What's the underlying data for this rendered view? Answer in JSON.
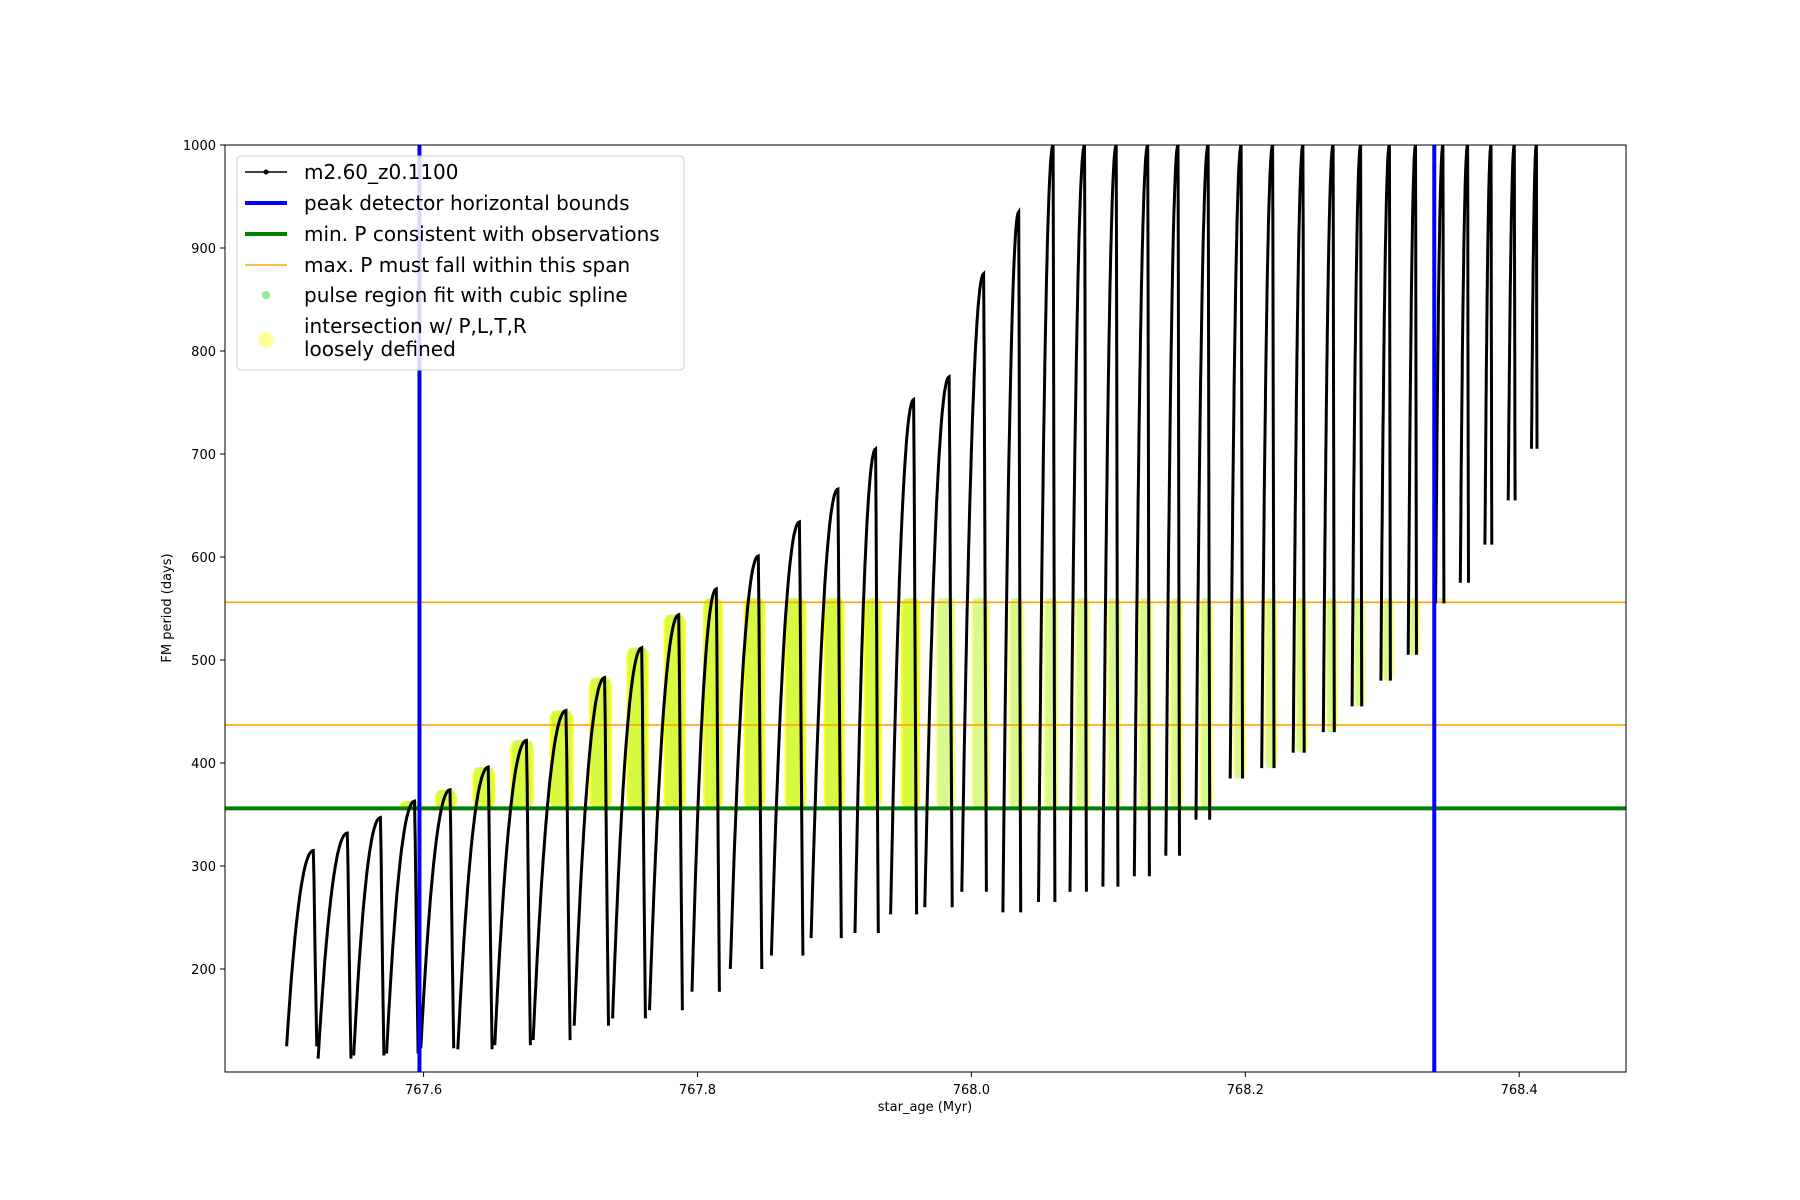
{
  "chart_data": {
    "type": "line",
    "xlabel": "star_age (Myr)",
    "ylabel": "FM period (days)",
    "xlim": [
      767.455,
      768.478
    ],
    "ylim": [
      100,
      1000
    ],
    "xticks": [
      767.6,
      767.8,
      768.0,
      768.2,
      768.4
    ],
    "xtick_labels": [
      "767.6",
      "767.8",
      "768.0",
      "768.2",
      "768.4"
    ],
    "yticks": [
      200,
      300,
      400,
      500,
      600,
      700,
      800,
      900,
      1000
    ],
    "ytick_labels": [
      "200",
      "300",
      "400",
      "500",
      "600",
      "700",
      "800",
      "900",
      "1000"
    ],
    "legend_position": "upper-left",
    "legend": [
      {
        "label": "m2.60_z0.1100",
        "kind": "line-marker",
        "color": "#000000"
      },
      {
        "label": "peak detector horizontal bounds",
        "kind": "line",
        "color": "#0000ff"
      },
      {
        "label": "min. P consistent with observations",
        "kind": "line",
        "color": "#008000"
      },
      {
        "label": "max. P must fall within this span",
        "kind": "line",
        "color": "#ffa500"
      },
      {
        "label": "pulse region fit with cubic spline",
        "kind": "dot",
        "color": "#90ee90"
      },
      {
        "label": "intersection w/ P,L,T,R",
        "label_line2": "loosely defined",
        "kind": "dot",
        "color": "#ffff99"
      }
    ],
    "vertical_lines": [
      {
        "x": 767.597,
        "color": "#0000ff"
      },
      {
        "x": 768.338,
        "color": "#0000ff"
      }
    ],
    "horizontal_lines": [
      {
        "y": 356,
        "color": "#008000"
      },
      {
        "y": 437,
        "color": "#ffa500"
      },
      {
        "y": 556,
        "color": "#ffa500"
      }
    ],
    "threshold_period": 356,
    "series": [
      {
        "name": "m2.60_z0.1100",
        "color": "#000000",
        "pulses": [
          {
            "start": 767.5,
            "max": 315,
            "min": 125,
            "dur": 0.022
          },
          {
            "start": 767.523,
            "max": 332,
            "min": 113,
            "dur": 0.024
          },
          {
            "start": 767.549,
            "max": 347,
            "min": 116,
            "dur": 0.022
          },
          {
            "start": 767.573,
            "max": 363,
            "min": 118,
            "dur": 0.023
          },
          {
            "start": 767.598,
            "max": 374,
            "min": 123,
            "dur": 0.024
          },
          {
            "start": 767.625,
            "max": 396,
            "min": 122,
            "dur": 0.025
          },
          {
            "start": 767.652,
            "max": 422,
            "min": 126,
            "dur": 0.026
          },
          {
            "start": 767.68,
            "max": 451,
            "min": 131,
            "dur": 0.027
          },
          {
            "start": 767.71,
            "max": 483,
            "min": 145,
            "dur": 0.025
          },
          {
            "start": 767.738,
            "max": 512,
            "min": 152,
            "dur": 0.024
          },
          {
            "start": 767.765,
            "max": 544,
            "min": 160,
            "dur": 0.024
          },
          {
            "start": 767.796,
            "max": 569,
            "min": 178,
            "dur": 0.02
          },
          {
            "start": 767.824,
            "max": 601,
            "min": 200,
            "dur": 0.023
          },
          {
            "start": 767.854,
            "max": 634,
            "min": 213,
            "dur": 0.023
          },
          {
            "start": 767.883,
            "max": 666,
            "min": 230,
            "dur": 0.022
          },
          {
            "start": 767.915,
            "max": 705,
            "min": 235,
            "dur": 0.017
          },
          {
            "start": 767.941,
            "max": 753,
            "min": 253,
            "dur": 0.019
          },
          {
            "start": 767.966,
            "max": 775,
            "min": 260,
            "dur": 0.02
          },
          {
            "start": 767.993,
            "max": 875,
            "min": 275,
            "dur": 0.018
          },
          {
            "start": 768.023,
            "max": 935,
            "min": 255,
            "dur": 0.013
          },
          {
            "start": 768.049,
            "max": 1000,
            "min": 265,
            "dur": 0.012
          },
          {
            "start": 768.072,
            "max": 1000,
            "min": 275,
            "dur": 0.012
          },
          {
            "start": 768.096,
            "max": 1000,
            "min": 280,
            "dur": 0.011
          },
          {
            "start": 768.119,
            "max": 1000,
            "min": 290,
            "dur": 0.011
          },
          {
            "start": 768.142,
            "max": 1000,
            "min": 310,
            "dur": 0.01
          },
          {
            "start": 768.164,
            "max": 1000,
            "min": 345,
            "dur": 0.01
          },
          {
            "start": 768.189,
            "max": 1000,
            "min": 385,
            "dur": 0.009
          },
          {
            "start": 768.212,
            "max": 1000,
            "min": 395,
            "dur": 0.009
          },
          {
            "start": 768.235,
            "max": 1000,
            "min": 410,
            "dur": 0.008
          },
          {
            "start": 768.257,
            "max": 1000,
            "min": 430,
            "dur": 0.008
          },
          {
            "start": 768.278,
            "max": 1000,
            "min": 455,
            "dur": 0.007
          },
          {
            "start": 768.299,
            "max": 1000,
            "min": 480,
            "dur": 0.007
          },
          {
            "start": 768.319,
            "max": 1000,
            "min": 505,
            "dur": 0.006
          },
          {
            "start": 768.339,
            "max": 1000,
            "min": 555,
            "dur": 0.006
          },
          {
            "start": 768.357,
            "max": 1000,
            "min": 575,
            "dur": 0.006
          },
          {
            "start": 768.375,
            "max": 1000,
            "min": 612,
            "dur": 0.005
          },
          {
            "start": 768.392,
            "max": 1000,
            "min": 655,
            "dur": 0.005
          },
          {
            "start": 768.409,
            "max": 1000,
            "min": 705,
            "dur": 0.004
          }
        ]
      }
    ]
  }
}
